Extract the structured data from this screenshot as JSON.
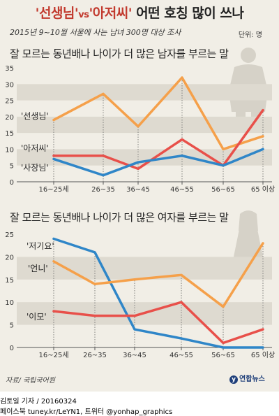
{
  "header": {
    "title_q1": "'선생님'",
    "title_vs": "vs",
    "title_q2": "'아저씨'",
    "title_rest": " 어떤 호칭 많이 쓰나",
    "subtitle": "2015년 9~10월 서울에 사는 남녀 300명 대상 조사",
    "unit": "단위: 명"
  },
  "chart_data": [
    {
      "type": "line",
      "title": "잘 모르는 동년배나 나이가 더 많은 남자를 부르는 말",
      "categories": [
        "16~25세",
        "26~35",
        "36~45",
        "46~55",
        "56~65",
        "65 이상"
      ],
      "yticks": [
        "0",
        "5",
        "10",
        "15",
        "20",
        "25",
        "30",
        "35"
      ],
      "ylim": [
        0,
        35
      ],
      "series": [
        {
          "name": "'선생님'",
          "color": "#f5a04a",
          "values": [
            19,
            27,
            17,
            32,
            10,
            14
          ]
        },
        {
          "name": "'아저씨'",
          "color": "#e8504a",
          "values": [
            8,
            8,
            4,
            13,
            5,
            22
          ]
        },
        {
          "name": "'사장님'",
          "color": "#2f86c8",
          "values": [
            7,
            2,
            6,
            8,
            5,
            10
          ]
        }
      ]
    },
    {
      "type": "line",
      "title": "잘 모르는 동년배나 나이가 더 많은 여자를 부르는 말",
      "categories": [
        "16~25세",
        "26~35",
        "36~45",
        "46~55",
        "56~65",
        "65 이상"
      ],
      "yticks": [
        "0",
        "5",
        "10",
        "15",
        "20",
        "25"
      ],
      "ylim": [
        0,
        25
      ],
      "series": [
        {
          "name": "'저기요'",
          "color": "#2f86c8",
          "values": [
            24,
            21,
            4,
            2,
            0,
            0
          ]
        },
        {
          "name": "'언니'",
          "color": "#f5a04a",
          "values": [
            19,
            14,
            15,
            16,
            9,
            23
          ]
        },
        {
          "name": "'이모'",
          "color": "#e8504a",
          "values": [
            8,
            7,
            7,
            10,
            1,
            4
          ]
        }
      ]
    }
  ],
  "footer": {
    "source": "자료/ 국립국어원",
    "logo_mark": "y",
    "logo_text": "연합뉴스",
    "credit_line1": "김토일 기자 / 20160324",
    "credit_line2": "페이스북 tuney.kr/LeYN1, 트위터 @yonhap_graphics"
  },
  "colors": {
    "orange": "#f5a04a",
    "red": "#e8504a",
    "blue": "#2f86c8",
    "band": "#dedad0",
    "background": "#f1eee6"
  }
}
